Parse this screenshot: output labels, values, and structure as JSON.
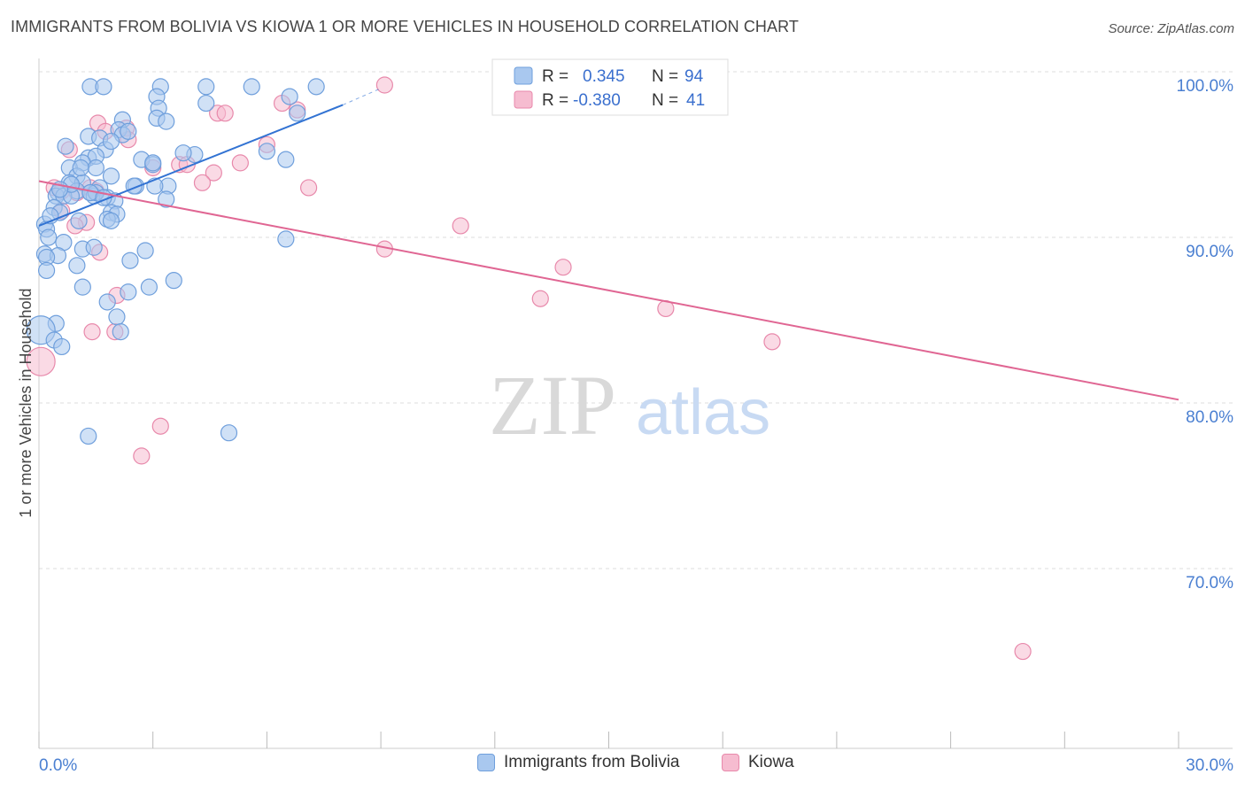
{
  "title": "IMMIGRANTS FROM BOLIVIA VS KIOWA 1 OR MORE VEHICLES IN HOUSEHOLD CORRELATION CHART",
  "source": "Source: ZipAtlas.com",
  "watermark": {
    "zip": "ZIP",
    "atlas": "atlas"
  },
  "colors": {
    "blue_fill": "#a9c8ef",
    "blue_stroke": "#6f9fdc",
    "blue_line": "#3273d3",
    "pink_fill": "#f6bcd0",
    "pink_stroke": "#e889ab",
    "pink_line": "#e06693",
    "axis_text": "#4a7fd1",
    "grid": "#dddddd"
  },
  "legend_box": {
    "rows": [
      {
        "r_label": "R =",
        "r_value": "0.345",
        "n_label": "N =",
        "n_value": "94",
        "series": "blue"
      },
      {
        "r_label": "R =",
        "r_value": "-0.380",
        "n_label": "N =",
        "n_value": "41",
        "series": "pink"
      }
    ]
  },
  "bottom_legend": [
    {
      "label": "Immigrants from Bolivia",
      "series": "blue"
    },
    {
      "label": "Kiowa",
      "series": "pink"
    }
  ],
  "chart_data": {
    "type": "scatter",
    "title": "IMMIGRANTS FROM BOLIVIA VS KIOWA 1 OR MORE VEHICLES IN HOUSEHOLD CORRELATION CHART",
    "xlabel": "",
    "ylabel": "1 or more Vehicles in Household",
    "xlim": [
      0,
      30
    ],
    "ylim": [
      60.5,
      101
    ],
    "x_ticks": [
      0,
      3,
      6,
      9,
      12,
      15,
      18,
      21,
      24,
      27,
      30
    ],
    "x_tick_labels": [
      {
        "value": 0,
        "label": "0.0%"
      },
      {
        "value": 30,
        "label": "30.0%"
      }
    ],
    "y_ticks": [
      {
        "value": 70,
        "label": "70.0%"
      },
      {
        "value": 80,
        "label": "80.0%"
      },
      {
        "value": 90,
        "label": "90.0%"
      },
      {
        "value": 100,
        "label": "100.0%"
      }
    ],
    "grid": true,
    "series": [
      {
        "name": "Immigrants from Bolivia",
        "color": "#a9c8ef",
        "trend": {
          "x": [
            0,
            8
          ],
          "y": [
            91.5,
            98.8
          ]
        },
        "trend_dashed": {
          "x": [
            8,
            9
          ],
          "y": [
            98.8,
            99.8
          ]
        },
        "points": [
          [
            1.35,
            99.9
          ],
          [
            1.7,
            99.9
          ],
          [
            3.2,
            99.9
          ],
          [
            4.4,
            99.9
          ],
          [
            5.6,
            99.9
          ],
          [
            7.3,
            99.9
          ],
          [
            6.6,
            99.3
          ],
          [
            3.1,
            99.3
          ],
          [
            3.15,
            98.6
          ],
          [
            4.4,
            98.9
          ],
          [
            3.1,
            98.0
          ],
          [
            2.2,
            97.9
          ],
          [
            3.35,
            97.8
          ],
          [
            6.8,
            98.3
          ],
          [
            2.1,
            97.3
          ],
          [
            1.3,
            96.9
          ],
          [
            1.6,
            96.8
          ],
          [
            2.2,
            97.0
          ],
          [
            0.7,
            96.3
          ],
          [
            1.75,
            96.1
          ],
          [
            6.0,
            96.0
          ],
          [
            1.3,
            95.6
          ],
          [
            1.5,
            95.7
          ],
          [
            2.7,
            95.5
          ],
          [
            3.0,
            95.2
          ],
          [
            4.1,
            95.8
          ],
          [
            3.8,
            95.9
          ],
          [
            1.15,
            95.3
          ],
          [
            6.5,
            95.5
          ],
          [
            0.8,
            95.0
          ],
          [
            1.5,
            95.0
          ],
          [
            1.0,
            94.5
          ],
          [
            1.9,
            94.5
          ],
          [
            0.8,
            94.1
          ],
          [
            1.15,
            94.1
          ],
          [
            2.55,
            93.9
          ],
          [
            2.5,
            93.9
          ],
          [
            1.6,
            93.8
          ],
          [
            1.0,
            93.6
          ],
          [
            3.4,
            93.9
          ],
          [
            0.5,
            93.5
          ],
          [
            0.45,
            93.3
          ],
          [
            0.65,
            93.3
          ],
          [
            1.35,
            93.5
          ],
          [
            1.45,
            93.3
          ],
          [
            1.8,
            93.2
          ],
          [
            0.85,
            93.3
          ],
          [
            1.5,
            93.5
          ],
          [
            1.35,
            93.5
          ],
          [
            2.0,
            93.0
          ],
          [
            1.7,
            93.2
          ],
          [
            3.35,
            93.1
          ],
          [
            0.4,
            92.6
          ],
          [
            0.55,
            92.3
          ],
          [
            1.9,
            92.3
          ],
          [
            2.05,
            92.2
          ],
          [
            1.8,
            91.9
          ],
          [
            1.9,
            91.8
          ],
          [
            1.05,
            91.8
          ],
          [
            0.15,
            91.6
          ],
          [
            0.2,
            91.3
          ],
          [
            0.25,
            90.8
          ],
          [
            0.65,
            90.5
          ],
          [
            6.5,
            90.7
          ],
          [
            1.15,
            90.1
          ],
          [
            2.8,
            90.0
          ],
          [
            0.15,
            89.8
          ],
          [
            0.5,
            89.7
          ],
          [
            0.2,
            89.6
          ],
          [
            2.4,
            89.4
          ],
          [
            1.0,
            89.1
          ],
          [
            0.2,
            88.8
          ],
          [
            3.55,
            88.2
          ],
          [
            1.15,
            87.8
          ],
          [
            2.9,
            87.8
          ],
          [
            2.35,
            87.5
          ],
          [
            1.8,
            86.9
          ],
          [
            2.05,
            86.0
          ],
          [
            0.45,
            85.6
          ],
          [
            0.05,
            85.2
          ],
          [
            2.15,
            85.1
          ],
          [
            0.4,
            84.6
          ],
          [
            0.6,
            84.2
          ],
          [
            1.3,
            78.8
          ],
          [
            5.0,
            79.0
          ],
          [
            1.1,
            95.0
          ],
          [
            1.9,
            96.6
          ],
          [
            2.35,
            97.2
          ],
          [
            3.0,
            95.3
          ],
          [
            1.45,
            90.2
          ],
          [
            3.05,
            93.9
          ],
          [
            0.3,
            92.1
          ],
          [
            0.85,
            94.0
          ],
          [
            0.55,
            93.7
          ]
        ]
      },
      {
        "name": "Kiowa",
        "color": "#f6bcd0",
        "trend": {
          "x": [
            0,
            30
          ],
          "y": [
            94.2,
            81.0
          ]
        },
        "points": [
          [
            9.1,
            100.0
          ],
          [
            15.2,
            99.9
          ],
          [
            6.4,
            98.9
          ],
          [
            6.8,
            98.5
          ],
          [
            4.7,
            98.3
          ],
          [
            4.9,
            98.3
          ],
          [
            1.55,
            97.7
          ],
          [
            2.3,
            97.4
          ],
          [
            1.75,
            97.2
          ],
          [
            2.35,
            96.7
          ],
          [
            6.0,
            96.4
          ],
          [
            0.8,
            96.1
          ],
          [
            5.3,
            95.3
          ],
          [
            3.7,
            95.2
          ],
          [
            3.9,
            95.2
          ],
          [
            3.0,
            95.0
          ],
          [
            4.6,
            94.7
          ],
          [
            4.3,
            94.1
          ],
          [
            7.1,
            93.8
          ],
          [
            0.4,
            93.8
          ],
          [
            1.35,
            93.8
          ],
          [
            0.6,
            93.6
          ],
          [
            1.5,
            93.6
          ],
          [
            1.0,
            93.5
          ],
          [
            0.6,
            92.4
          ],
          [
            1.25,
            91.7
          ],
          [
            11.1,
            91.5
          ],
          [
            0.95,
            91.5
          ],
          [
            9.1,
            90.1
          ],
          [
            1.6,
            89.9
          ],
          [
            13.8,
            89.0
          ],
          [
            13.2,
            87.1
          ],
          [
            2.05,
            87.3
          ],
          [
            16.5,
            86.5
          ],
          [
            2.0,
            85.1
          ],
          [
            1.4,
            85.1
          ],
          [
            19.3,
            84.5
          ],
          [
            0.05,
            83.3
          ],
          [
            3.2,
            79.4
          ],
          [
            2.7,
            77.6
          ],
          [
            25.9,
            65.8
          ]
        ]
      }
    ]
  }
}
